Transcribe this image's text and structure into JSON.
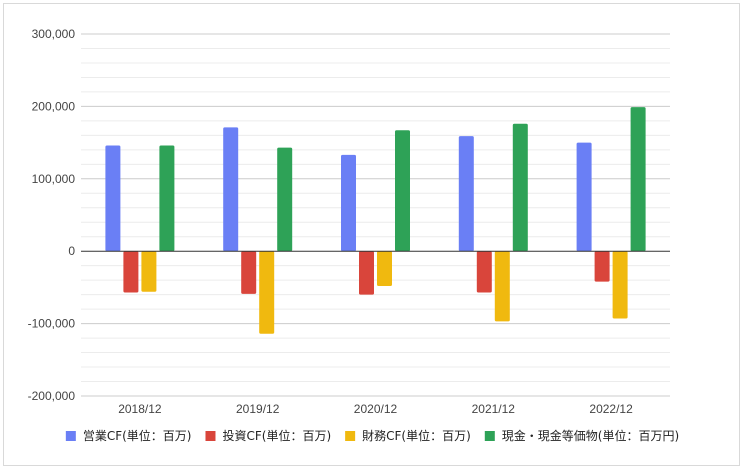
{
  "chart_data": {
    "type": "bar",
    "categories": [
      "2018/12",
      "2019/12",
      "2020/12",
      "2021/12",
      "2022/12"
    ],
    "series": [
      {
        "name": "営業CF(単位：百万)",
        "color": "#6a7ff5",
        "values": [
          146000,
          171000,
          133000,
          159000,
          150000
        ]
      },
      {
        "name": "投資CF(単位：百万)",
        "color": "#d9453b",
        "values": [
          -57000,
          -59000,
          -60000,
          -57000,
          -42000
        ]
      },
      {
        "name": "財務CF(単位：百万)",
        "color": "#f0b90f",
        "values": [
          -56000,
          -114000,
          -48000,
          -97000,
          -93000
        ]
      },
      {
        "name": "現金・現金等価物(単位：百万円)",
        "color": "#2ea257",
        "values": [
          146000,
          143000,
          167000,
          176000,
          199000
        ]
      }
    ],
    "yticks": [
      300000,
      200000,
      100000,
      0,
      -100000,
      -200000
    ],
    "ytick_labels": [
      "300,000",
      "200,000",
      "100,000",
      "0",
      "-100,000",
      "-200,000"
    ],
    "ylim": [
      -200000,
      300000
    ],
    "grid": true,
    "legend_position": "bottom",
    "title": "",
    "xlabel": "",
    "ylabel": ""
  }
}
